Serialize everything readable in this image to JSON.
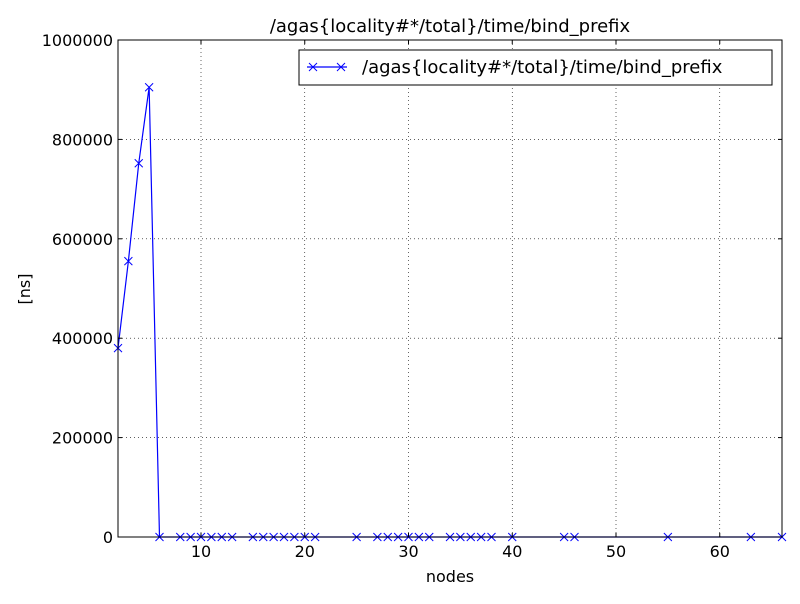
{
  "chart_data": {
    "type": "line",
    "title": "/agas{locality#*/total}/time/bind_prefix",
    "xlabel": "nodes",
    "ylabel": "[ns]",
    "xlim": [
      2,
      66
    ],
    "ylim": [
      0,
      1000000
    ],
    "x_ticks": [
      10,
      20,
      30,
      40,
      50,
      60
    ],
    "y_ticks": [
      0,
      200000,
      400000,
      600000,
      800000,
      1000000
    ],
    "grid": true,
    "legend": {
      "position": "top-right",
      "entries": [
        "/agas{locality#*/total}/time/bind_prefix"
      ]
    },
    "series": [
      {
        "name": "/agas{locality#*/total}/time/bind_prefix",
        "color": "#0000ff",
        "marker": "x",
        "x": [
          2,
          3,
          4,
          5,
          6,
          8,
          9,
          10,
          11,
          12,
          13,
          15,
          16,
          17,
          18,
          19,
          20,
          21,
          25,
          27,
          28,
          29,
          30,
          31,
          32,
          34,
          35,
          36,
          37,
          38,
          40,
          45,
          46,
          55,
          63,
          66
        ],
        "values": [
          380000,
          555000,
          752000,
          905000,
          0,
          0,
          0,
          0,
          0,
          0,
          0,
          0,
          0,
          0,
          0,
          0,
          0,
          0,
          0,
          0,
          0,
          0,
          0,
          0,
          0,
          0,
          0,
          0,
          0,
          0,
          0,
          0,
          0,
          0,
          0,
          0
        ]
      }
    ]
  }
}
